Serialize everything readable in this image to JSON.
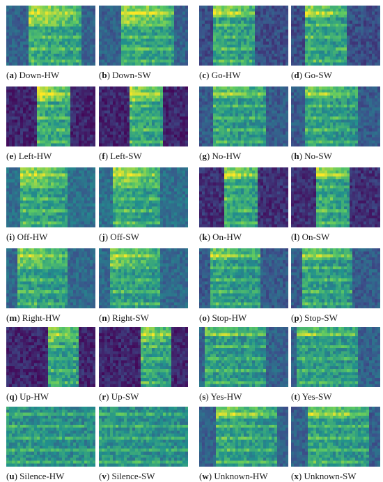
{
  "figure": {
    "panels": [
      {
        "letter": "a",
        "label": "Down-HW"
      },
      {
        "letter": "b",
        "label": "Down-SW"
      },
      {
        "letter": "c",
        "label": "Go-HW"
      },
      {
        "letter": "d",
        "label": "Go-SW"
      },
      {
        "letter": "e",
        "label": "Left-HW"
      },
      {
        "letter": "f",
        "label": "Left-SW"
      },
      {
        "letter": "g",
        "label": "No-HW"
      },
      {
        "letter": "h",
        "label": "No-SW"
      },
      {
        "letter": "i",
        "label": "Off-HW"
      },
      {
        "letter": "j",
        "label": "Off-SW"
      },
      {
        "letter": "k",
        "label": "On-HW"
      },
      {
        "letter": "l",
        "label": "On-SW"
      },
      {
        "letter": "m",
        "label": "Right-HW"
      },
      {
        "letter": "n",
        "label": "Right-SW"
      },
      {
        "letter": "o",
        "label": "Stop-HW"
      },
      {
        "letter": "p",
        "label": "Stop-SW"
      },
      {
        "letter": "q",
        "label": "Up-HW"
      },
      {
        "letter": "r",
        "label": "Up-SW"
      },
      {
        "letter": "s",
        "label": "Yes-HW"
      },
      {
        "letter": "t",
        "label": "Yes-SW"
      },
      {
        "letter": "u",
        "label": "Silence-HW"
      },
      {
        "letter": "v",
        "label": "Silence-SW"
      },
      {
        "letter": "w",
        "label": "Unknown-HW"
      },
      {
        "letter": "x",
        "label": "Unknown-SW"
      }
    ],
    "colormap": [
      "#440154",
      "#3b528b",
      "#21908d",
      "#5dc962",
      "#fde725"
    ],
    "background_color": "#ffffff"
  }
}
